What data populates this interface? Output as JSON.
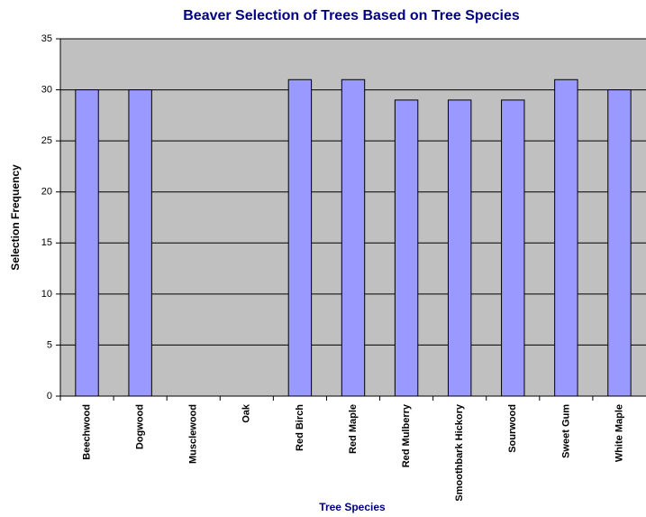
{
  "chart_data": {
    "type": "bar",
    "title": "Beaver Selection of Trees Based on Tree Species",
    "x_label": "Tree Species",
    "y_label": "Selection Frequency",
    "categories": [
      "Beechwood",
      "Dogwood",
      "Musclewood",
      "Oak",
      "Red Birch",
      "Red Maple",
      "Red Mulberry",
      "Smoothbark Hickory",
      "Sourwood",
      "Sweet Gum",
      "White Maple"
    ],
    "values": [
      30,
      30,
      0,
      0,
      31,
      31,
      29,
      29,
      29,
      31,
      30
    ],
    "color": "#9999ff",
    "ylim": [
      0,
      35
    ],
    "yticks": [
      0,
      5,
      10,
      15,
      20,
      25,
      30,
      35
    ],
    "grid": true
  }
}
